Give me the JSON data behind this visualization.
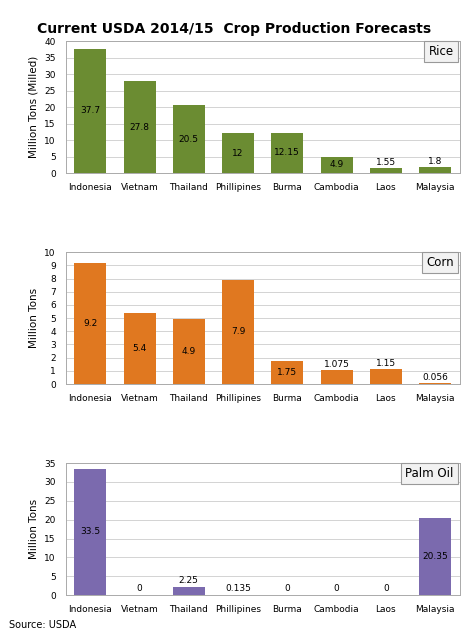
{
  "title": "Current USDA 2014/15  Crop Production Forecasts",
  "source": "Source: USDA",
  "categories": [
    "Indonesia",
    "Vietnam",
    "Thailand",
    "Phillipines",
    "Burma",
    "Cambodia",
    "Laos",
    "Malaysia"
  ],
  "rice": {
    "values": [
      37.7,
      27.8,
      20.5,
      12,
      12.15,
      4.9,
      1.55,
      1.8
    ],
    "labels": [
      "37.7",
      "27.8",
      "20.5",
      "12",
      "12.15",
      "4.9",
      "1.55",
      "1.8"
    ],
    "color": "#6b8c32",
    "label": "Rice",
    "ylabel": "Million Tons (Milled)",
    "ylim": [
      0,
      40
    ],
    "yticks": [
      0,
      5,
      10,
      15,
      20,
      25,
      30,
      35,
      40
    ]
  },
  "corn": {
    "values": [
      9.2,
      5.4,
      4.9,
      7.9,
      1.75,
      1.075,
      1.15,
      0.056
    ],
    "labels": [
      "9.2",
      "5.4",
      "4.9",
      "7.9",
      "1.75",
      "1.075",
      "1.15",
      "0.056"
    ],
    "color": "#e07820",
    "label": "Corn",
    "ylabel": "Million Tons",
    "ylim": [
      0,
      10
    ],
    "yticks": [
      0,
      1,
      2,
      3,
      4,
      5,
      6,
      7,
      8,
      9,
      10
    ]
  },
  "palmoil": {
    "values": [
      33.5,
      0,
      2.25,
      0.135,
      0,
      0,
      0,
      20.35
    ],
    "labels": [
      "33.5",
      "0",
      "2.25",
      "0.135",
      "0",
      "0",
      "0",
      "20.35"
    ],
    "color": "#7b6aae",
    "label": "Palm Oil",
    "ylabel": "Million Tons",
    "ylim": [
      0,
      35
    ],
    "yticks": [
      0,
      5,
      10,
      15,
      20,
      25,
      30,
      35
    ]
  },
  "bar_width": 0.65,
  "title_fontsize": 10,
  "tick_fontsize": 6.5,
  "ylabel_fontsize": 7.5,
  "legend_fontsize": 8.5,
  "value_fontsize": 6.5,
  "background_color": "#ffffff",
  "grid_color": "#cccccc",
  "legend_box_facecolor": "#f2f2f2",
  "legend_border_color": "#999999"
}
